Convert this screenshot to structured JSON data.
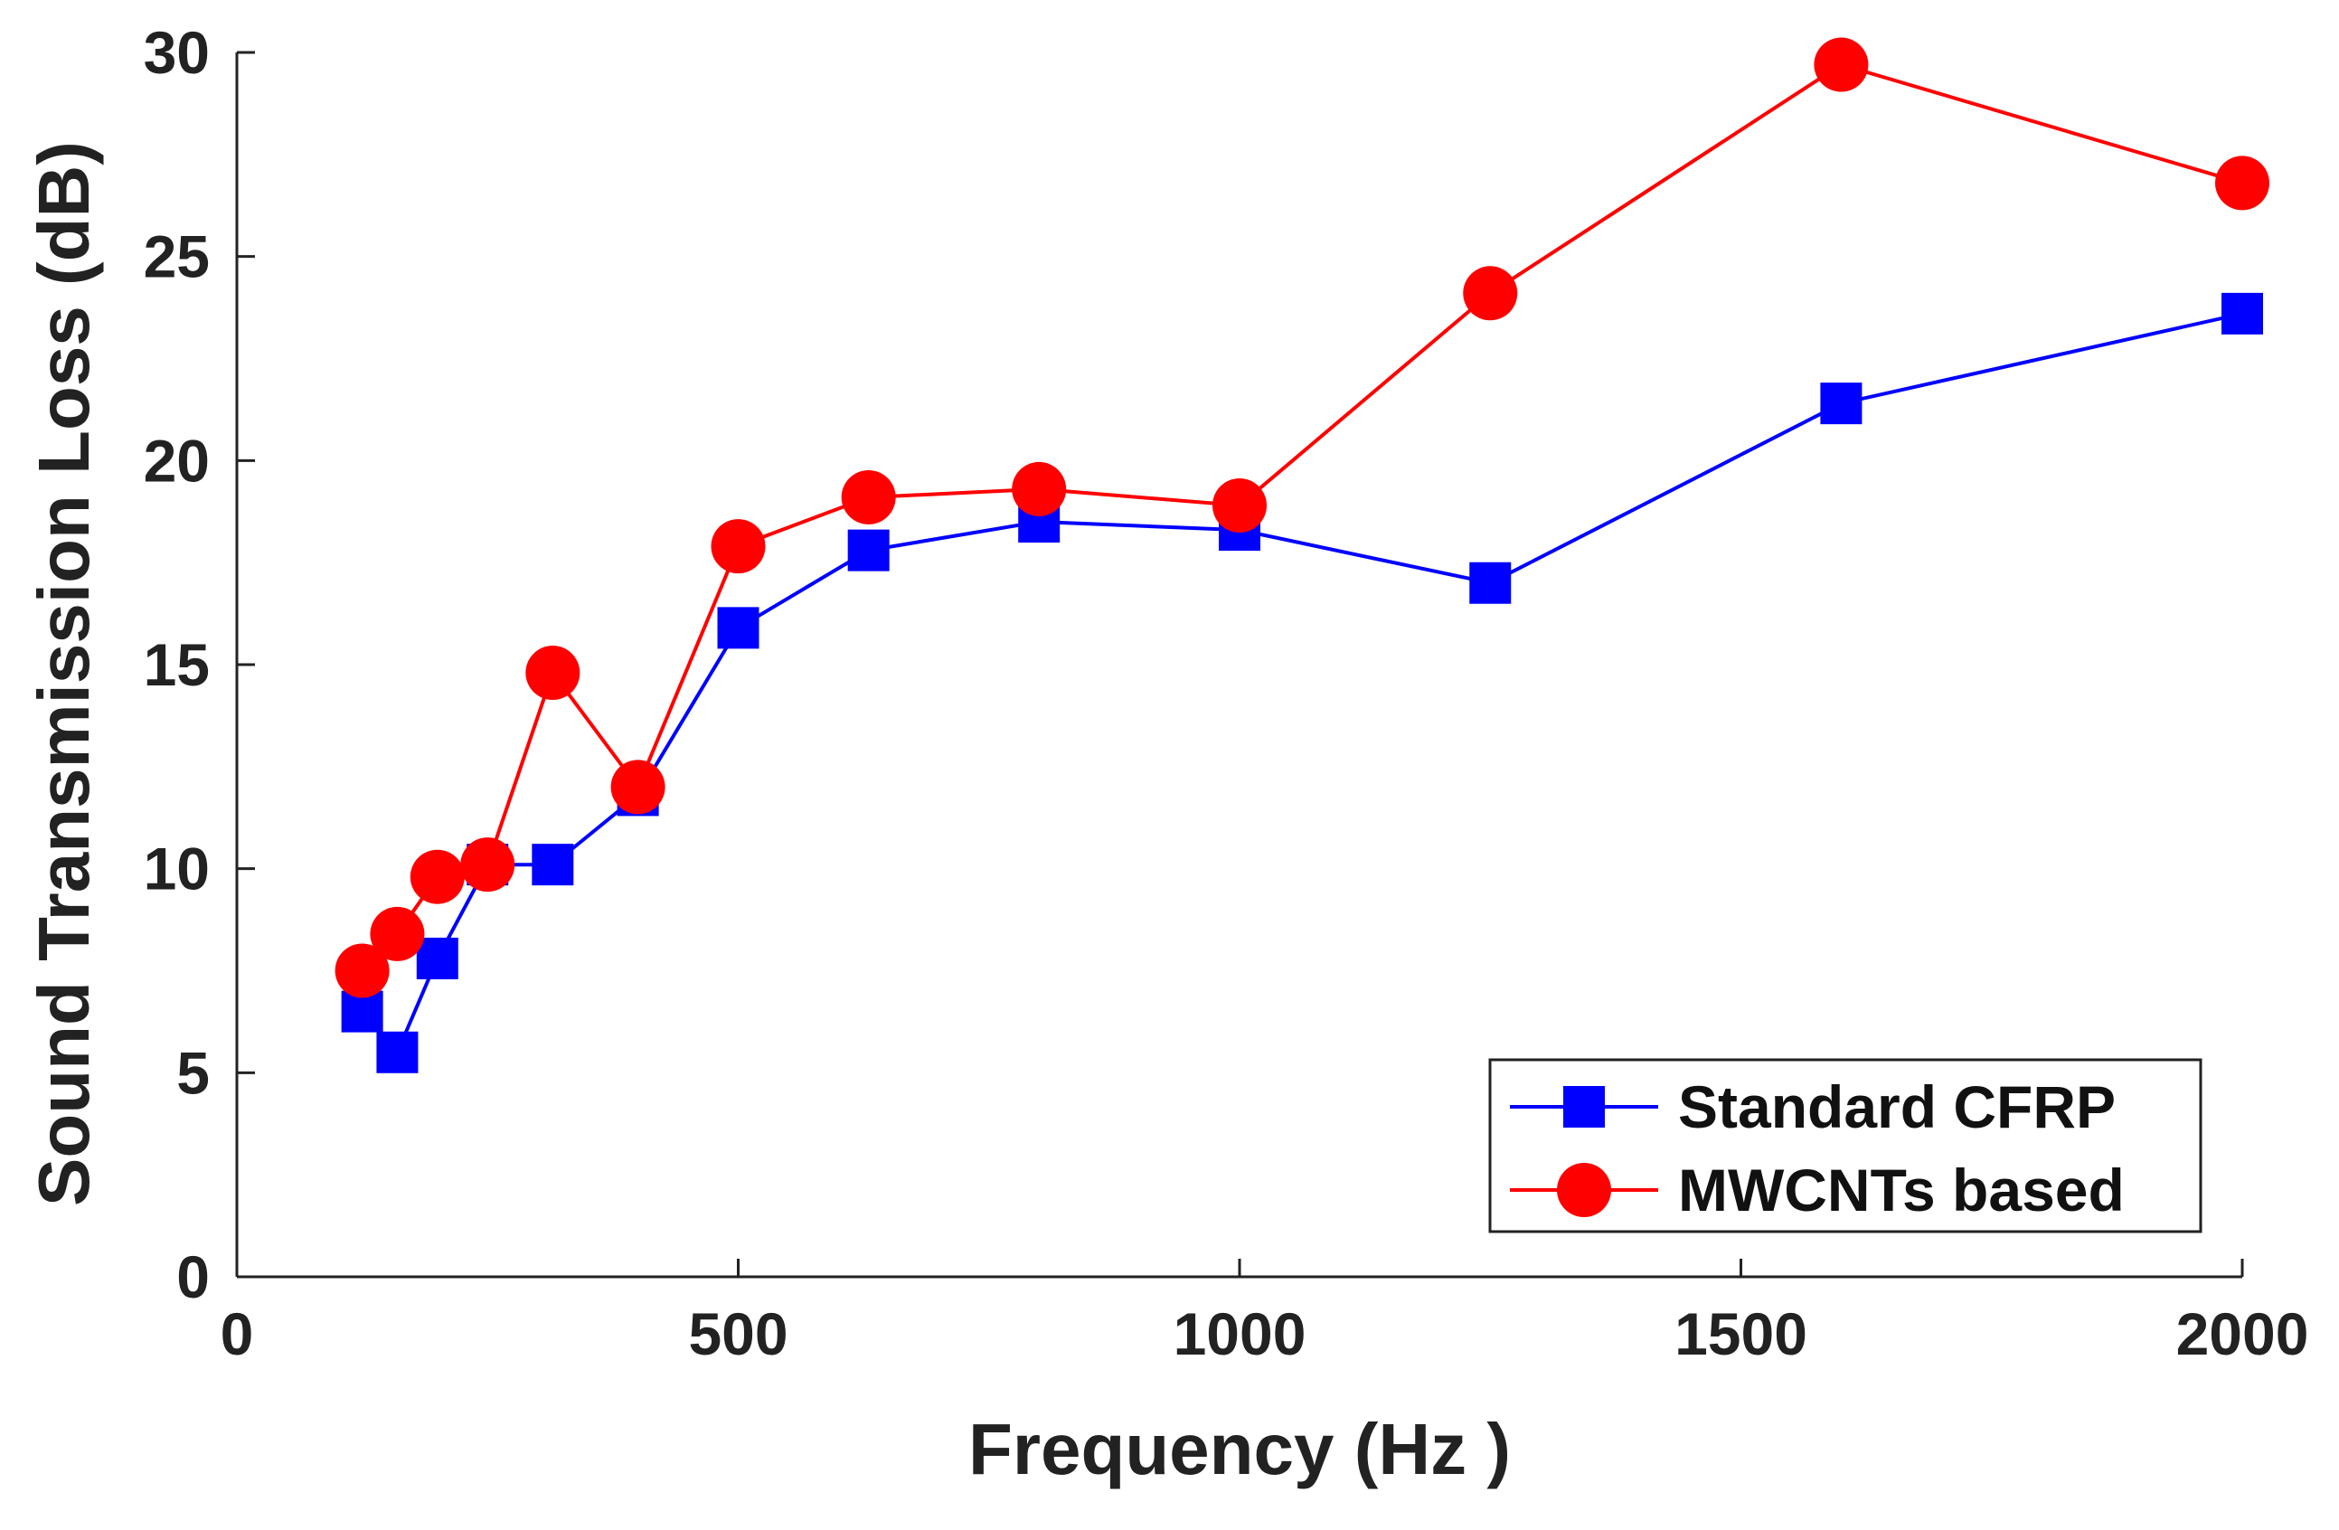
{
  "chart_data": {
    "type": "line",
    "title": "",
    "xlabel": "Frequency (Hz )",
    "ylabel": "Sound Transmission Loss (dB)",
    "xlim": [
      0,
      2000
    ],
    "ylim": [
      0,
      30
    ],
    "xticks": [
      0,
      500,
      1000,
      1500,
      2000
    ],
    "yticks": [
      0,
      5,
      10,
      15,
      20,
      25,
      30
    ],
    "grid": false,
    "legend_position": "bottom-right",
    "series": [
      {
        "name": "Standard CFRP",
        "color": "#0000ff",
        "marker": "square",
        "x": [
          125,
          160,
          200,
          250,
          315,
          400,
          500,
          630,
          800,
          1000,
          1250,
          1600,
          2000
        ],
        "y": [
          6.5,
          5.5,
          7.8,
          10.1,
          10.1,
          11.8,
          15.9,
          17.8,
          18.5,
          18.3,
          17.0,
          21.4,
          23.6
        ]
      },
      {
        "name": "MWCNTs based",
        "color": "#ff0000",
        "marker": "circle",
        "x": [
          125,
          160,
          200,
          250,
          315,
          400,
          500,
          630,
          800,
          1000,
          1250,
          1600,
          2000
        ],
        "y": [
          7.5,
          8.4,
          9.8,
          10.1,
          14.8,
          12.0,
          17.9,
          19.1,
          19.3,
          18.9,
          24.1,
          29.7,
          26.8
        ]
      }
    ]
  }
}
